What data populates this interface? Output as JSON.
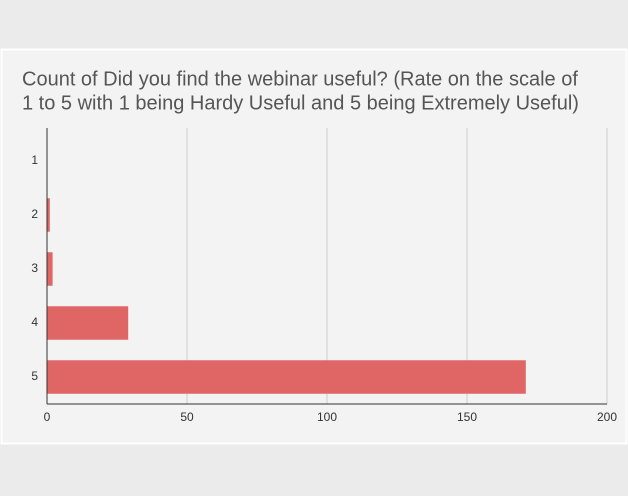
{
  "chart_data": {
    "type": "hbar",
    "title": [
      "Count of Did you find the webinar useful? (Rate on the scale of",
      "1 to 5 with 1 being Hardy Useful and 5 being Extremely Useful)"
    ],
    "categories": [
      "1",
      "2",
      "3",
      "4",
      "5"
    ],
    "values": [
      0,
      1,
      2,
      29,
      171
    ],
    "color": "#e06666",
    "xlim": [
      0,
      200
    ],
    "xticks": [
      0,
      50,
      100,
      150,
      200
    ],
    "grid": true
  }
}
